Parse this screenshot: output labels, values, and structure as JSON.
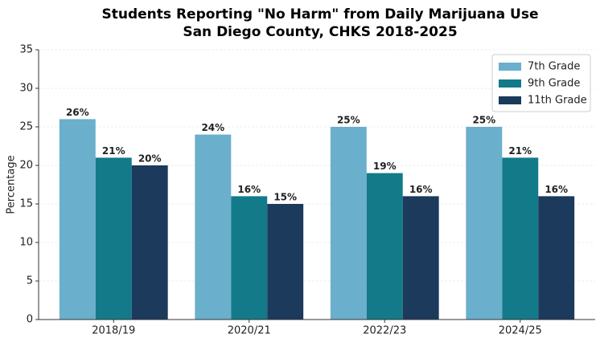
{
  "chart_data": {
    "type": "bar",
    "title": [
      "Students Reporting \"No Harm\" from Daily Marijuana Use",
      "San Diego County, CHKS 2018-2025"
    ],
    "y_label": "Percentage",
    "categories": [
      "2018/19",
      "2020/21",
      "2022/23",
      "2024/25"
    ],
    "series": [
      {
        "name": "7th Grade",
        "color": "#6aafcc",
        "values": [
          26,
          24,
          25,
          25
        ],
        "value_labels": [
          "26%",
          "24%",
          "25%",
          "25%"
        ]
      },
      {
        "name": "9th Grade",
        "color": "#137a8a",
        "values": [
          21,
          16,
          19,
          21
        ],
        "value_labels": [
          "21%",
          "16%",
          "19%",
          "21%"
        ]
      },
      {
        "name": "11th Grade",
        "color": "#1b3a5c",
        "values": [
          20,
          15,
          16,
          16
        ],
        "value_labels": [
          "20%",
          "15%",
          "16%",
          "16%"
        ]
      }
    ],
    "ylim": [
      0,
      35
    ],
    "yticks": [
      0,
      5,
      10,
      15,
      20,
      25,
      30,
      35
    ],
    "grid": true,
    "legend": "upper right"
  }
}
